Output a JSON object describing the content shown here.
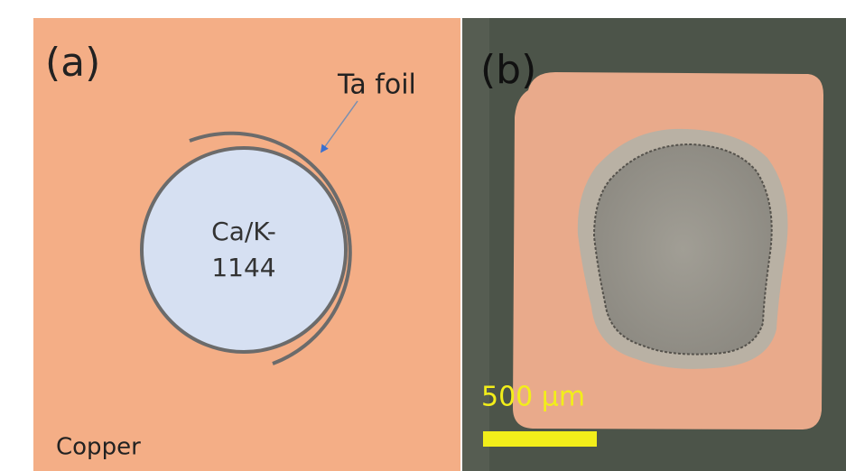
{
  "panel_a": {
    "label": "(a)",
    "foil_label": "Ta foil",
    "sample_label": [
      "Ca/K-",
      "1144"
    ],
    "matrix_label": "Copper"
  },
  "panel_b": {
    "label": "(b)",
    "scale_bar_label": "500 µm"
  }
}
